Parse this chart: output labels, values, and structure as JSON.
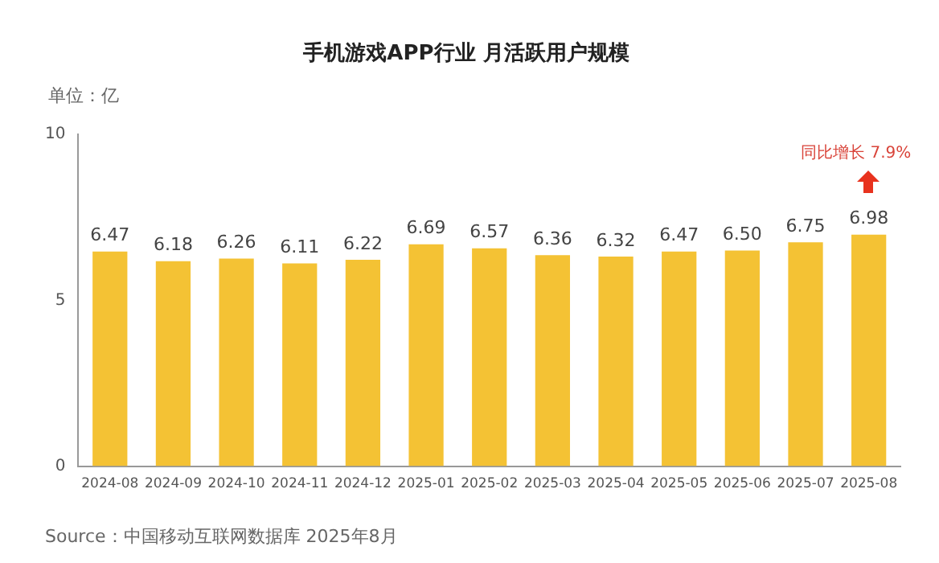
{
  "chart_data": {
    "type": "bar",
    "title": "手机游戏APP行业 月活跃用户规模",
    "categories": [
      "2024-08",
      "2024-09",
      "2024-10",
      "2024-11",
      "2024-12",
      "2025-01",
      "2025-02",
      "2025-03",
      "2025-04",
      "2025-05",
      "2025-06",
      "2025-07",
      "2025-08"
    ],
    "values": [
      6.47,
      6.18,
      6.26,
      6.11,
      6.22,
      6.69,
      6.57,
      6.36,
      6.32,
      6.47,
      6.5,
      6.75,
      6.98
    ],
    "color": "#f4c234",
    "value_labels": [
      "6.47",
      "6.18",
      "6.26",
      "6.11",
      "6.22",
      "6.69",
      "6.57",
      "6.36",
      "6.32",
      "6.47",
      "6.50",
      "6.75",
      "6.98"
    ],
    "ylim": [
      0,
      10
    ],
    "yticks": [
      0,
      5,
      10
    ],
    "grid": false,
    "legend": false,
    "annotations": [
      "单位：亿",
      "同比增长 7.9%",
      "Source：中国移动互联网数据库 2025年8月"
    ]
  }
}
